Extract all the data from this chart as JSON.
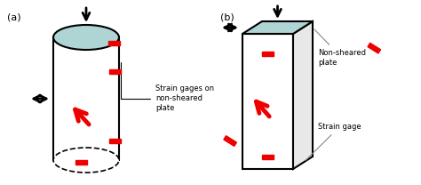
{
  "bg_color": "#ffffff",
  "cylinder_color": "#ffffff",
  "cylinder_edge": "#000000",
  "top_ellipse_color": "#afd4d4",
  "rect_color": "#ffffff",
  "rect_edge": "#000000",
  "rect_top_color": "#afd4d4",
  "rect_side_color": "#e8e8e8",
  "gage_color": "#ee0000",
  "arrow_color": "#000000",
  "red_arrow_color": "#ee0000",
  "label_a": "(a)",
  "label_b": "(b)",
  "annotation_a": "Strain gages on\nnon-sheared\nplate",
  "annotation_b1": "Non-sheared\nplate",
  "annotation_b2": "Strain gage",
  "text_color": "#000000",
  "ann_line_color": "#888888"
}
